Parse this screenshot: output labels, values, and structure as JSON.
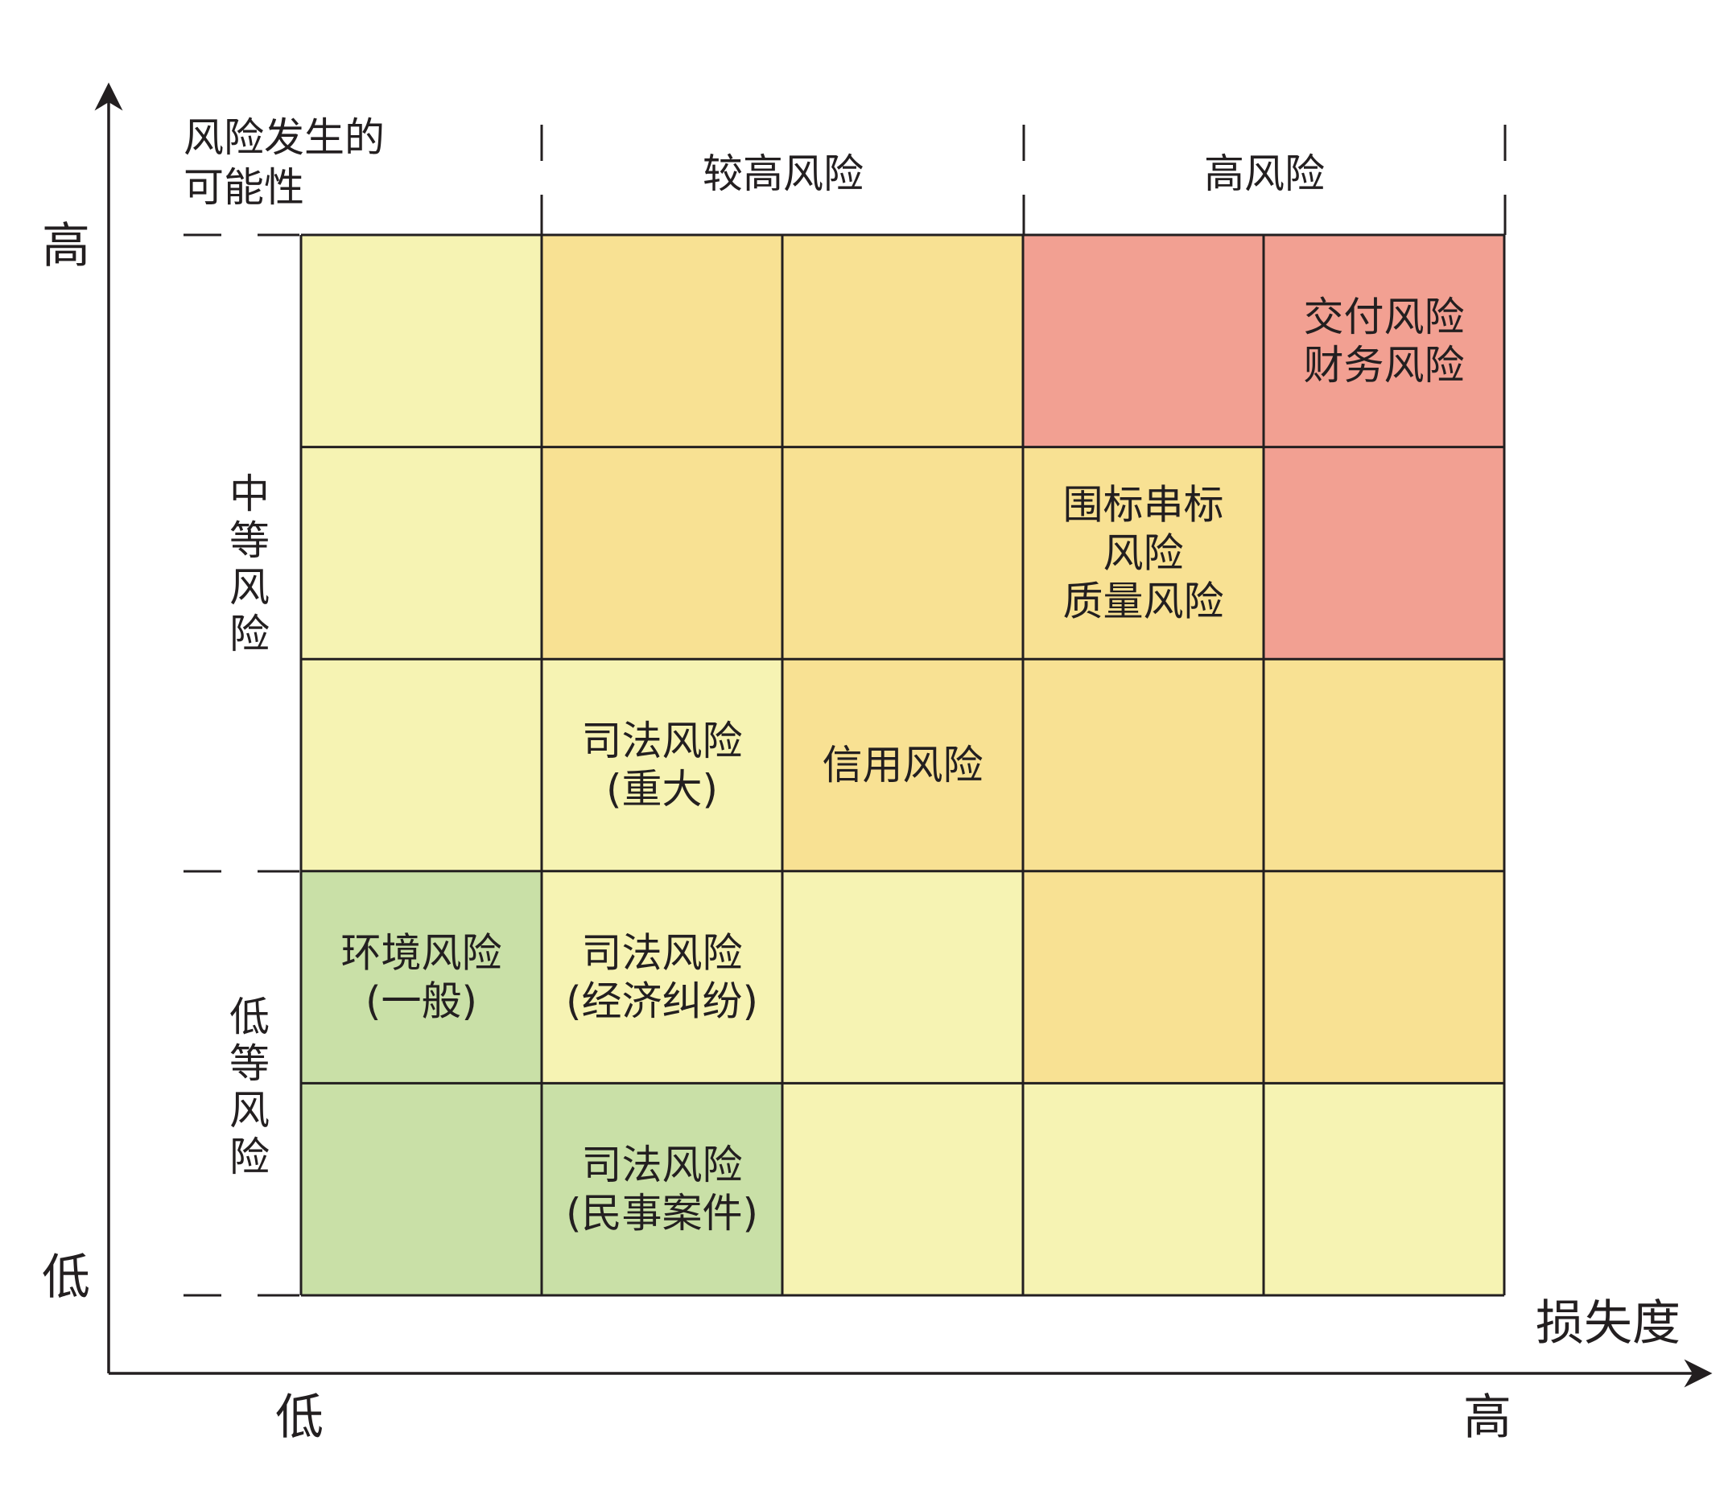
{
  "y_axis": {
    "high": "高",
    "low": "低",
    "title_lines": [
      "风险发生的",
      "可能性"
    ]
  },
  "x_axis": {
    "low": "低",
    "high": "高",
    "title": "损失度"
  },
  "bands": {
    "top": [
      "较高风险",
      "高风险"
    ],
    "left": [
      "中等风险",
      "低等风险"
    ]
  },
  "colors": {
    "green": "#c9e0a7",
    "yellow": "#f6f3b3",
    "orange": "#f8e193",
    "red": "#f2a092",
    "line": "#231f20"
  },
  "grid": {
    "rows": 5,
    "cols": 5,
    "cells": [
      [
        "yellow",
        "orange",
        "orange",
        "red",
        "red"
      ],
      [
        "yellow",
        "orange",
        "orange",
        "orange",
        "red"
      ],
      [
        "yellow",
        "yellow",
        "orange",
        "orange",
        "orange"
      ],
      [
        "green",
        "yellow",
        "yellow",
        "orange",
        "orange"
      ],
      [
        "green",
        "green",
        "yellow",
        "yellow",
        "yellow"
      ]
    ]
  },
  "risks": [
    {
      "row": 0,
      "col": 4,
      "lines": [
        "交付风险",
        "财务风险"
      ]
    },
    {
      "row": 1,
      "col": 3,
      "lines": [
        "围标串标",
        "风险",
        "质量风险"
      ]
    },
    {
      "row": 2,
      "col": 1,
      "lines": [
        "司法风险",
        "(重大)"
      ]
    },
    {
      "row": 2,
      "col": 2,
      "lines": [
        "信用风险"
      ]
    },
    {
      "row": 3,
      "col": 0,
      "lines": [
        "环境风险",
        "(一般)"
      ]
    },
    {
      "row": 3,
      "col": 1,
      "lines": [
        "司法风险",
        "(经济纠纷)"
      ]
    },
    {
      "row": 4,
      "col": 1,
      "lines": [
        "司法风险",
        "(民事案件)"
      ]
    }
  ]
}
